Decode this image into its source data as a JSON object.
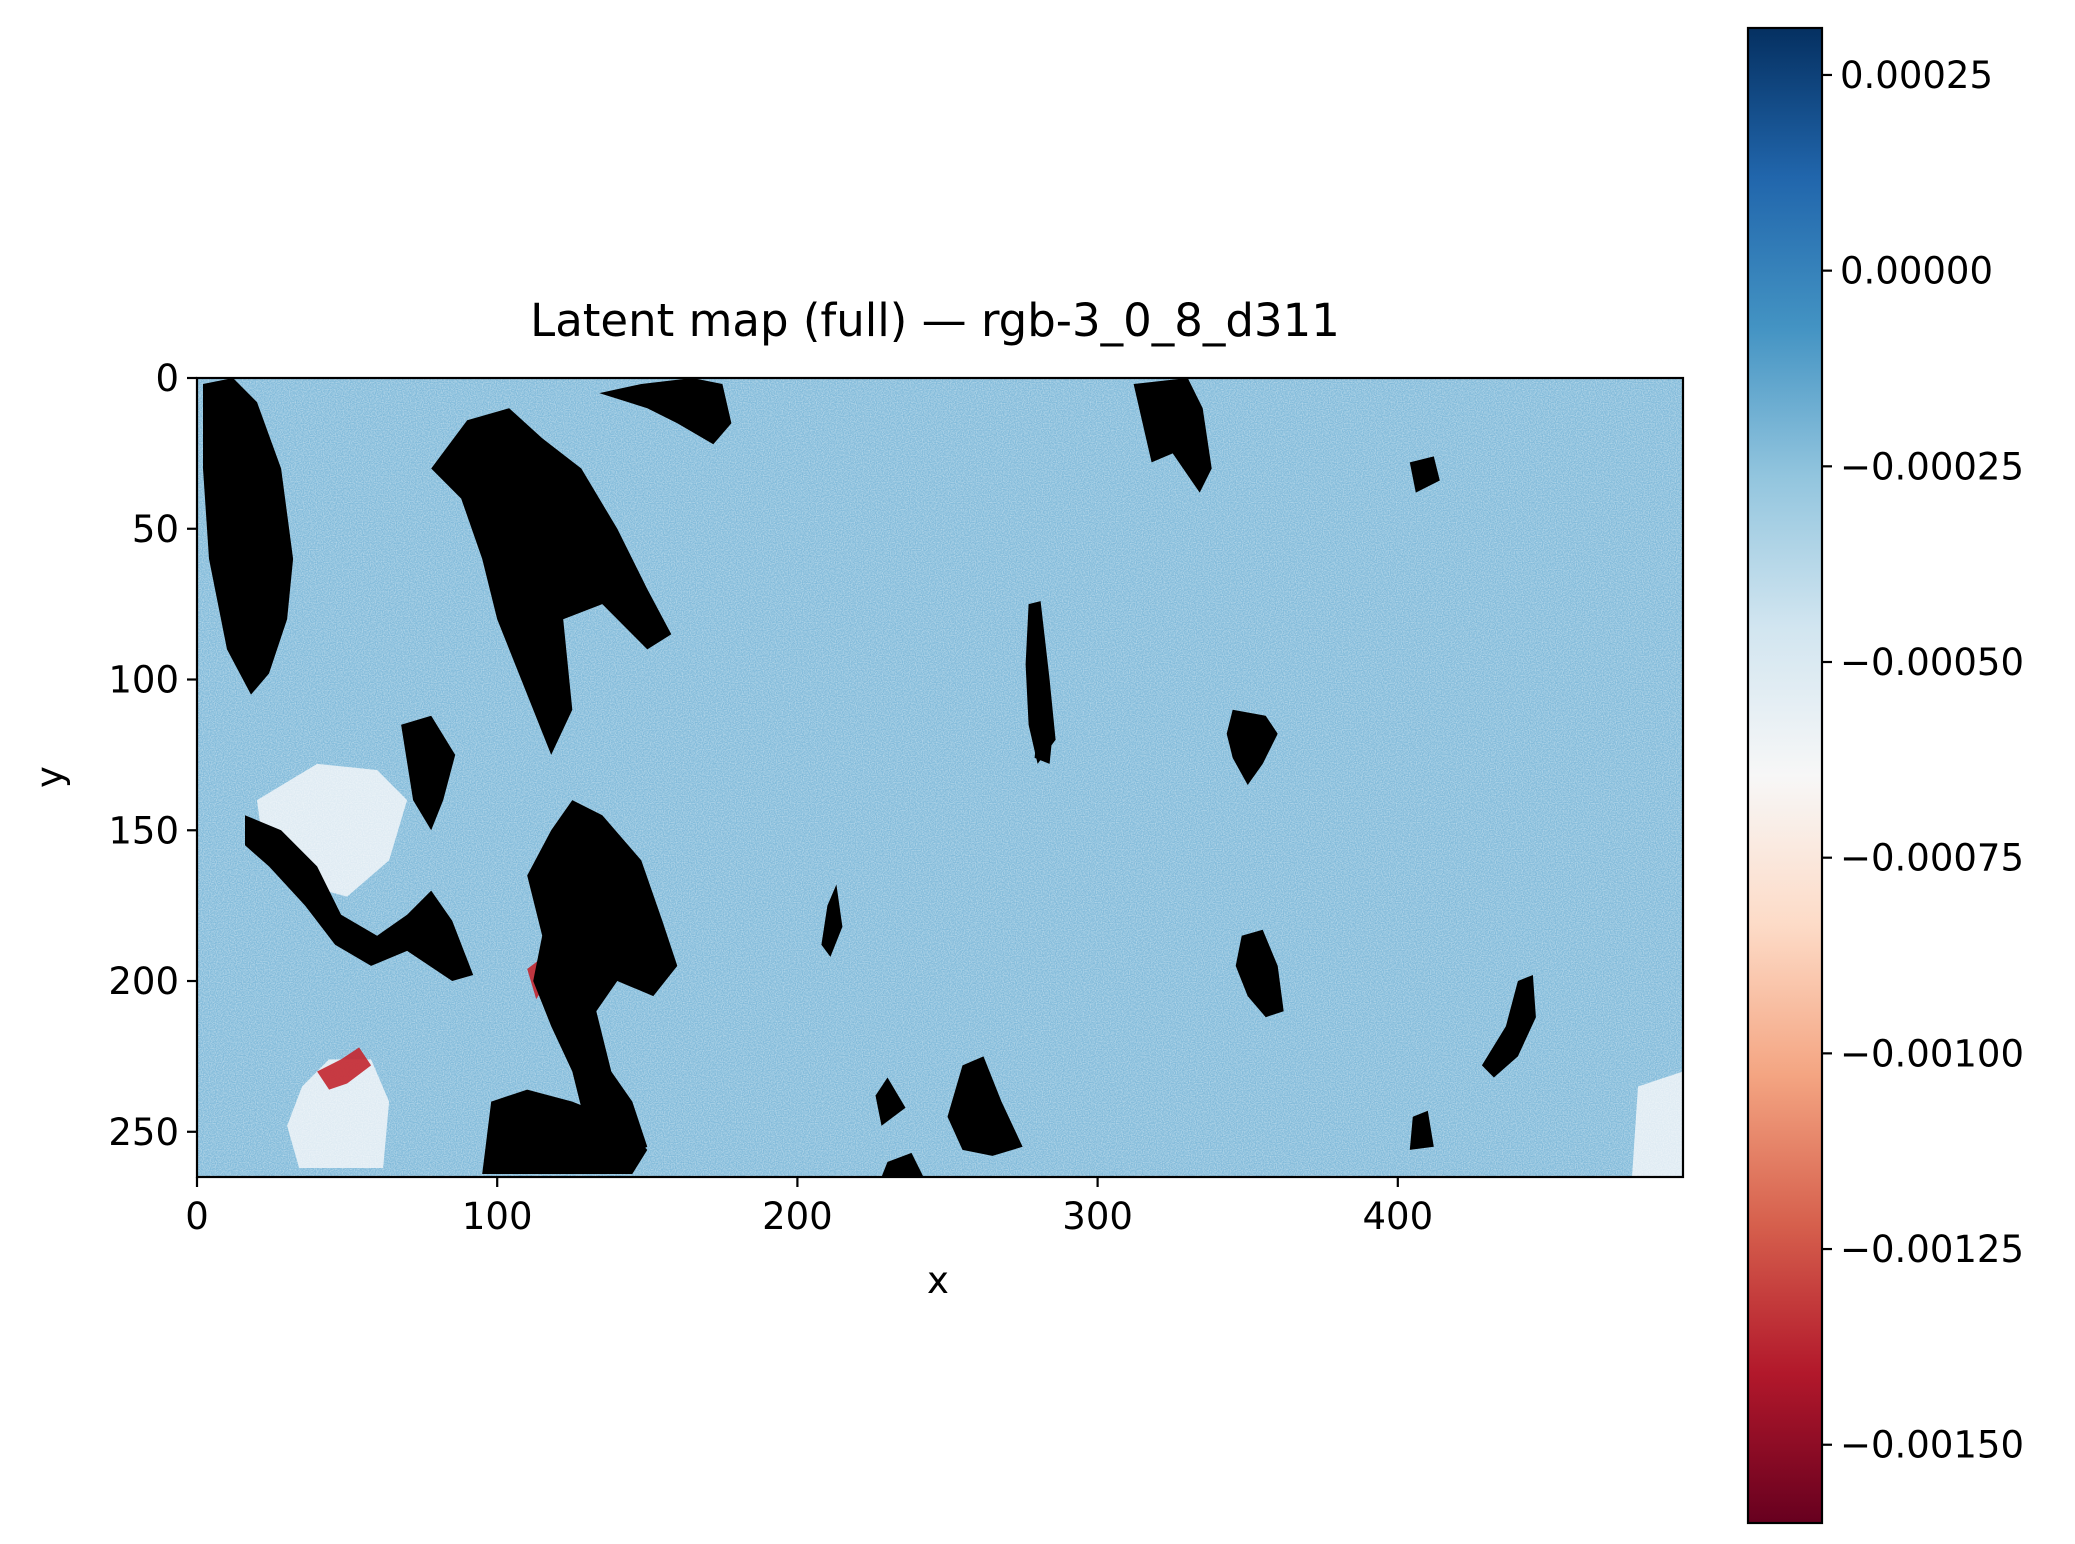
{
  "chart_data": {
    "type": "heatmap",
    "title": "Latent map (full) — rgb-3_0_8_d311",
    "xlabel": "x",
    "ylabel": "y",
    "xlim": [
      0,
      495
    ],
    "ylim": [
      265,
      0
    ],
    "x_ticks": [
      0,
      100,
      200,
      300,
      400
    ],
    "y_ticks": [
      0,
      50,
      100,
      150,
      200,
      250
    ],
    "x_tick_labels": [
      "0",
      "100",
      "200",
      "300",
      "400"
    ],
    "y_tick_labels": [
      "0",
      "50",
      "100",
      "150",
      "200",
      "250"
    ],
    "colormap": "RdBu",
    "background_typical_value": -0.00025,
    "colorbar": {
      "vmin": -0.0016,
      "vmax": 0.00031,
      "ticks": [
        0.00025,
        0.0,
        -0.00025,
        -0.0005,
        -0.00075,
        -0.001,
        -0.00125,
        -0.0015
      ],
      "tick_labels": [
        "0.00025",
        "0.00000",
        "−0.00025",
        "−0.00050",
        "−0.00075",
        "−0.00100",
        "−0.00125",
        "−0.00150"
      ]
    },
    "colormap_stops": [
      "#67001f",
      "#b2182b",
      "#d6604d",
      "#f4a582",
      "#fddbc7",
      "#f7f7f7",
      "#d1e5f0",
      "#92c5de",
      "#4393c3",
      "#2166ac",
      "#053061"
    ],
    "masked_color": "#000000",
    "grid": false,
    "masked_regions_note": "",
    "masked_regions": [
      [
        [
          2,
          2
        ],
        [
          12,
          0
        ],
        [
          20,
          8
        ],
        [
          28,
          30
        ],
        [
          32,
          60
        ],
        [
          30,
          80
        ],
        [
          24,
          98
        ],
        [
          18,
          105
        ],
        [
          10,
          90
        ],
        [
          4,
          60
        ],
        [
          2,
          30
        ]
      ],
      [
        [
          78,
          30
        ],
        [
          90,
          14
        ],
        [
          104,
          10
        ],
        [
          115,
          20
        ],
        [
          128,
          30
        ],
        [
          140,
          50
        ],
        [
          150,
          70
        ],
        [
          158,
          85
        ],
        [
          150,
          90
        ],
        [
          135,
          75
        ],
        [
          122,
          80
        ],
        [
          125,
          110
        ],
        [
          118,
          125
        ],
        [
          108,
          100
        ],
        [
          100,
          80
        ],
        [
          95,
          60
        ],
        [
          88,
          40
        ]
      ],
      [
        [
          134,
          5
        ],
        [
          148,
          2
        ],
        [
          165,
          0
        ],
        [
          175,
          2
        ],
        [
          178,
          15
        ],
        [
          172,
          22
        ],
        [
          160,
          15
        ],
        [
          150,
          10
        ]
      ],
      [
        [
          312,
          2
        ],
        [
          330,
          0
        ],
        [
          335,
          10
        ],
        [
          338,
          30
        ],
        [
          334,
          38
        ],
        [
          325,
          25
        ],
        [
          318,
          28
        ],
        [
          315,
          15
        ]
      ],
      [
        [
          404,
          28
        ],
        [
          412,
          26
        ],
        [
          414,
          34
        ],
        [
          406,
          38
        ]
      ],
      [
        [
          277,
          75
        ],
        [
          281,
          74
        ],
        [
          284,
          100
        ],
        [
          286,
          120
        ],
        [
          280,
          128
        ],
        [
          277,
          115
        ],
        [
          276,
          95
        ]
      ],
      [
        [
          16,
          145
        ],
        [
          28,
          150
        ],
        [
          40,
          162
        ],
        [
          48,
          178
        ],
        [
          60,
          185
        ],
        [
          70,
          178
        ],
        [
          78,
          170
        ],
        [
          85,
          180
        ],
        [
          92,
          198
        ],
        [
          85,
          200
        ],
        [
          70,
          190
        ],
        [
          58,
          195
        ],
        [
          46,
          188
        ],
        [
          36,
          175
        ],
        [
          24,
          162
        ],
        [
          16,
          155
        ]
      ],
      [
        [
          68,
          115
        ],
        [
          78,
          112
        ],
        [
          86,
          125
        ],
        [
          82,
          140
        ],
        [
          78,
          150
        ],
        [
          72,
          140
        ]
      ],
      [
        [
          125,
          140
        ],
        [
          135,
          145
        ],
        [
          148,
          160
        ],
        [
          155,
          180
        ],
        [
          160,
          195
        ],
        [
          152,
          205
        ],
        [
          140,
          200
        ],
        [
          133,
          210
        ],
        [
          138,
          230
        ],
        [
          145,
          240
        ],
        [
          150,
          255
        ],
        [
          140,
          260
        ],
        [
          130,
          250
        ],
        [
          125,
          230
        ],
        [
          118,
          215
        ],
        [
          112,
          200
        ],
        [
          115,
          185
        ],
        [
          110,
          165
        ],
        [
          118,
          150
        ]
      ],
      [
        [
          98,
          240
        ],
        [
          110,
          236
        ],
        [
          125,
          240
        ],
        [
          140,
          246
        ],
        [
          150,
          256
        ],
        [
          145,
          264
        ],
        [
          95,
          264
        ]
      ],
      [
        [
          345,
          110
        ],
        [
          356,
          112
        ],
        [
          360,
          118
        ],
        [
          355,
          128
        ],
        [
          350,
          135
        ],
        [
          345,
          126
        ],
        [
          343,
          118
        ]
      ],
      [
        [
          348,
          185
        ],
        [
          355,
          183
        ],
        [
          360,
          195
        ],
        [
          362,
          210
        ],
        [
          356,
          212
        ],
        [
          350,
          205
        ],
        [
          346,
          195
        ]
      ],
      [
        [
          255,
          228
        ],
        [
          262,
          225
        ],
        [
          268,
          240
        ],
        [
          275,
          255
        ],
        [
          265,
          258
        ],
        [
          255,
          256
        ],
        [
          250,
          245
        ]
      ],
      [
        [
          405,
          245
        ],
        [
          410,
          243
        ],
        [
          412,
          255
        ],
        [
          404,
          256
        ]
      ],
      [
        [
          440,
          200
        ],
        [
          445,
          198
        ],
        [
          446,
          212
        ],
        [
          440,
          225
        ],
        [
          432,
          232
        ],
        [
          428,
          228
        ],
        [
          436,
          215
        ]
      ],
      [
        [
          280,
          115
        ],
        [
          285,
          118
        ],
        [
          284,
          128
        ],
        [
          279,
          126
        ]
      ],
      [
        [
          210,
          175
        ],
        [
          213,
          168
        ],
        [
          215,
          182
        ],
        [
          211,
          192
        ],
        [
          208,
          188
        ]
      ],
      [
        [
          230,
          232
        ],
        [
          236,
          242
        ],
        [
          228,
          248
        ],
        [
          226,
          238
        ]
      ],
      [
        [
          230,
          260
        ],
        [
          238,
          257
        ],
        [
          242,
          265
        ],
        [
          228,
          265
        ]
      ]
    ],
    "red_spots": [
      [
        [
          40,
          230
        ],
        [
          48,
          226
        ],
        [
          54,
          222
        ],
        [
          58,
          228
        ],
        [
          50,
          234
        ],
        [
          44,
          236
        ]
      ],
      [
        [
          110,
          196
        ],
        [
          114,
          193
        ],
        [
          117,
          200
        ],
        [
          113,
          206
        ]
      ]
    ],
    "light_patches": [
      [
        [
          20,
          140
        ],
        [
          40,
          128
        ],
        [
          60,
          130
        ],
        [
          70,
          140
        ],
        [
          64,
          160
        ],
        [
          50,
          172
        ],
        [
          35,
          168
        ],
        [
          22,
          155
        ]
      ],
      [
        [
          35,
          235
        ],
        [
          44,
          226
        ],
        [
          58,
          226
        ],
        [
          64,
          240
        ],
        [
          62,
          262
        ],
        [
          34,
          262
        ],
        [
          30,
          248
        ]
      ],
      [
        [
          480,
          235
        ],
        [
          495,
          230
        ],
        [
          495,
          265
        ],
        [
          478,
          265
        ]
      ]
    ]
  }
}
